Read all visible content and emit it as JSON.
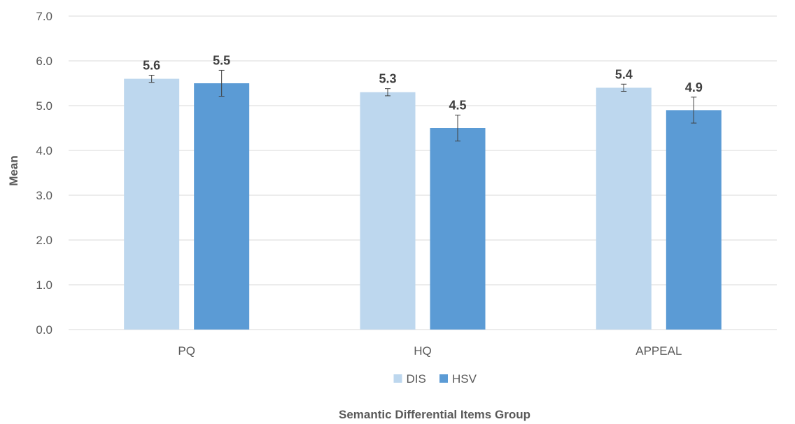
{
  "chart_data": {
    "type": "bar",
    "title": "",
    "xlabel": "Semantic Differential Items Group",
    "ylabel": "Mean",
    "categories": [
      "PQ",
      "HQ",
      "APPEAL"
    ],
    "series": [
      {
        "name": "DIS",
        "values": [
          5.6,
          5.3,
          5.4
        ],
        "errors": [
          0.08,
          0.08,
          0.08
        ],
        "color": "#bdd7ee"
      },
      {
        "name": "HSV",
        "values": [
          5.5,
          4.5,
          4.9
        ],
        "errors": [
          0.29,
          0.29,
          0.29
        ],
        "color": "#5b9bd5"
      }
    ],
    "data_labels": [
      [
        "5.6",
        "5.3",
        "5.4"
      ],
      [
        "5.5",
        "4.5",
        "4.9"
      ]
    ],
    "ylim": [
      0,
      7
    ],
    "yticks": [
      0,
      1,
      2,
      3,
      4,
      5,
      6,
      7
    ],
    "ytick_labels": [
      "0.0",
      "1.0",
      "2.0",
      "3.0",
      "4.0",
      "5.0",
      "6.0",
      "7.0"
    ],
    "grid": true,
    "legend_position": "bottom",
    "colors": {
      "gridline": "#d9d9d9",
      "axis_line": "#d9d9d9",
      "error_bar": "#404040"
    }
  }
}
